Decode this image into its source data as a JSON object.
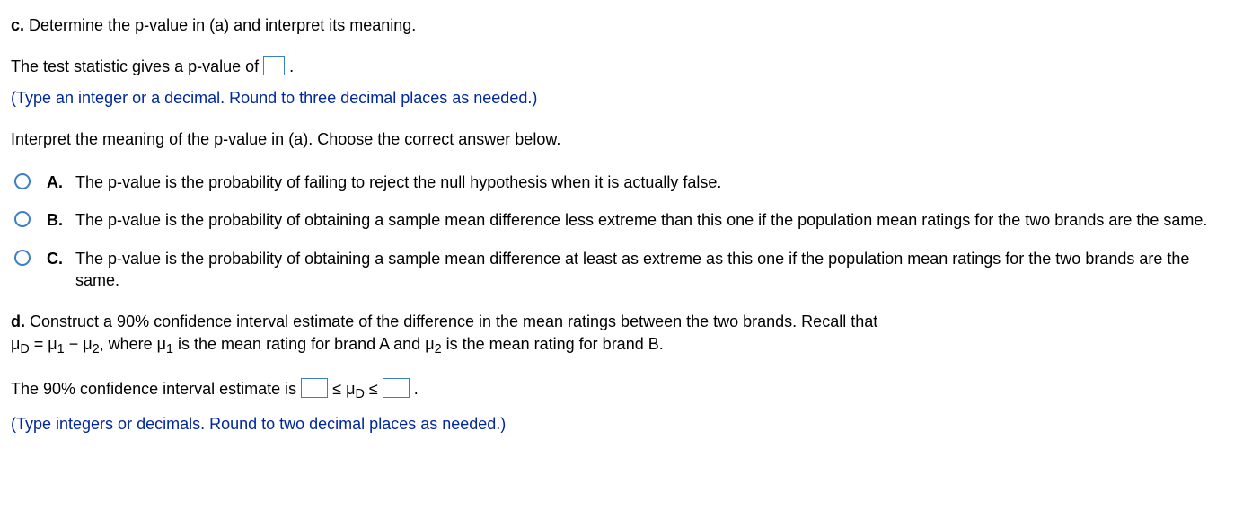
{
  "sectionC": {
    "label": "c.",
    "prompt": "Determine the p-value in (a) and interpret its meaning.",
    "stat_before": "The test statistic gives a p-value of ",
    "stat_after": ".",
    "hint": "(Type an integer or a decimal. Round to three decimal places as needed.)",
    "interpret_prompt": "Interpret the meaning of the p-value in (a). Choose the correct answer below."
  },
  "options": {
    "A": {
      "letter": "A.",
      "text": "The p-value is the probability of failing to reject the null hypothesis when it is actually false."
    },
    "B": {
      "letter": "B.",
      "text": "The p-value is the probability of obtaining a sample mean difference less extreme than this one if the population mean ratings for the two brands are the same."
    },
    "C": {
      "letter": "C.",
      "text": "The p-value is the probability of obtaining a sample mean difference at least as extreme as this one if the population mean ratings for the two brands are the same."
    }
  },
  "sectionD": {
    "label": "d.",
    "line1_part1": "Construct a 90% confidence interval estimate of the difference in the mean ratings between the two brands. Recall that ",
    "muD": "μ",
    "sub_D": "D",
    "eq": " = ",
    "mu1": "μ",
    "sub_1": "1",
    "minus": " − ",
    "mu2": "μ",
    "sub_2": "2",
    "comma_where": ", where ",
    "mu1b": "μ",
    "sub_1b": "1",
    "is_mean_a": " is the mean rating for brand A and ",
    "mu2b": "μ",
    "sub_2b": "2",
    "is_mean_b": " is the mean rating for brand B.",
    "ci_before": "The 90% confidence interval estimate is ",
    "leq1": " ≤ ",
    "muDc": "μ",
    "sub_Dc": "D",
    "leq2": " ≤ ",
    "ci_after": ".",
    "hint": "(Type integers or decimals. Round to two decimal places as needed.)"
  }
}
